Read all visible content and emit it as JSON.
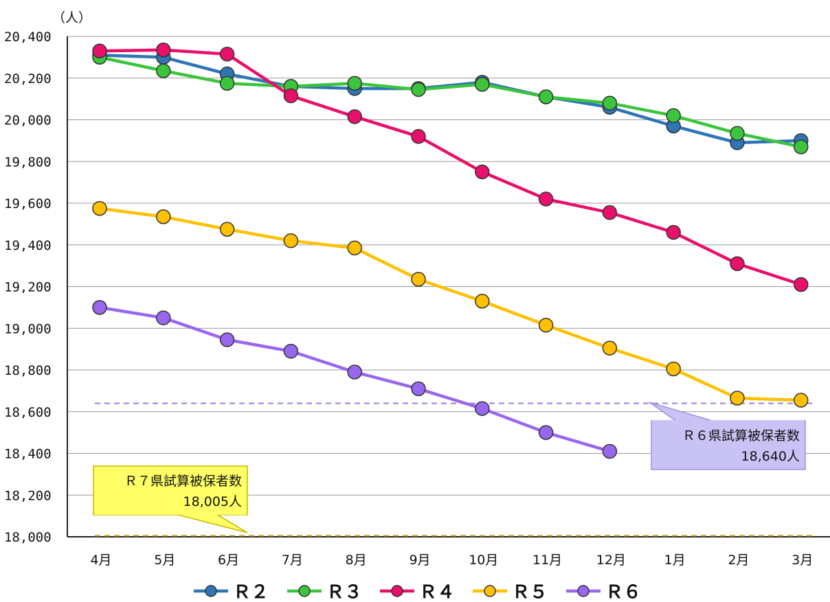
{
  "chart_data": {
    "type": "line",
    "unit_label": "（人）",
    "categories": [
      "4月",
      "5月",
      "6月",
      "7月",
      "8月",
      "9月",
      "10月",
      "11月",
      "12月",
      "1月",
      "2月",
      "3月"
    ],
    "y_ticks": [
      "18,000",
      "18,200",
      "18,400",
      "18,600",
      "18,800",
      "19,000",
      "19,200",
      "19,400",
      "19,600",
      "19,800",
      "20,000",
      "20,200",
      "20,400"
    ],
    "ylim": [
      18000,
      20400
    ],
    "grid": true,
    "legend_position": "bottom",
    "series": [
      {
        "name": "Ｒ２",
        "color": "#2e75b6",
        "values": [
          20310,
          20300,
          20220,
          20160,
          20150,
          20150,
          20180,
          20110,
          20060,
          19970,
          19890,
          19900
        ]
      },
      {
        "name": "Ｒ３",
        "color": "#3cc43c",
        "values": [
          20300,
          20235,
          20175,
          20160,
          20175,
          20145,
          20170,
          20110,
          20080,
          20020,
          19935,
          19870
        ]
      },
      {
        "name": "Ｒ４",
        "color": "#e8106a",
        "values": [
          20330,
          20335,
          20315,
          20115,
          20015,
          19920,
          19750,
          19620,
          19555,
          19460,
          19310,
          19210
        ]
      },
      {
        "name": "Ｒ５",
        "color": "#ffc000",
        "values": [
          19575,
          19535,
          19475,
          19420,
          19385,
          19235,
          19130,
          19015,
          18905,
          18805,
          18665,
          18655
        ]
      },
      {
        "name": "Ｒ６",
        "color": "#9966ee",
        "values": [
          19100,
          19050,
          18945,
          18890,
          18790,
          18710,
          18615,
          18500,
          18410,
          null,
          null,
          null
        ]
      }
    ],
    "reference_lines": [
      {
        "value": 18640,
        "color": "#9e7fe3"
      },
      {
        "value": 18005,
        "color": "#c8a020"
      }
    ],
    "annotations": [
      {
        "line1": "Ｒ６県試算被保者数",
        "line2": "18,640人",
        "fill": "#c9c3f5",
        "stroke": "#9e8fd8"
      },
      {
        "line1": "Ｒ７県試算被保者数",
        "line2": "18,005人",
        "fill": "#ffff66",
        "stroke": "#c8b400"
      }
    ]
  }
}
